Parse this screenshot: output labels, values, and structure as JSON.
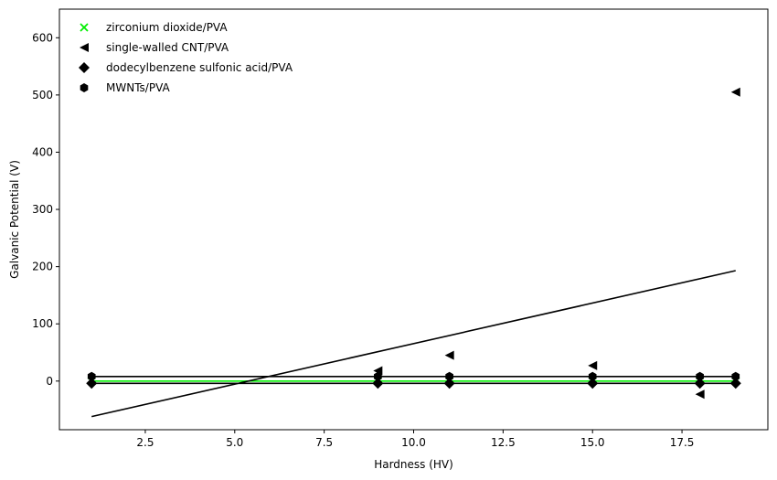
{
  "chart_data": {
    "type": "scatter",
    "xlabel": "Hardness (HV)",
    "ylabel": "Galvanic Potential (V)",
    "xlim": [
      0.1,
      19.9
    ],
    "ylim": [
      -85,
      650
    ],
    "xticks": [
      2.5,
      5.0,
      7.5,
      10.0,
      12.5,
      15.0,
      17.5
    ],
    "xtick_labels": [
      "2.5",
      "5.0",
      "7.5",
      "10.0",
      "12.5",
      "15.0",
      "17.5"
    ],
    "yticks": [
      0,
      100,
      200,
      300,
      400,
      500,
      600
    ],
    "ytick_labels": [
      "0",
      "100",
      "200",
      "300",
      "400",
      "500",
      "600"
    ],
    "grid": false,
    "legend_position": "top-left",
    "series": [
      {
        "name": "zirconium dioxide/PVA",
        "marker": "x",
        "color": "#00ee00",
        "x": [
          1,
          9,
          11,
          15,
          18,
          19
        ],
        "y": [
          0,
          0,
          0,
          0,
          0,
          0
        ],
        "fit": {
          "x": [
            1,
            19
          ],
          "y": [
            0,
            0
          ],
          "color": "#00ee00"
        }
      },
      {
        "name": "single-walled CNT/PVA",
        "marker": "triangle-left",
        "color": "#000000",
        "x": [
          9,
          11,
          15,
          18,
          19
        ],
        "y": [
          18,
          45,
          27,
          -23,
          505
        ],
        "fit": {
          "x": [
            1,
            19
          ],
          "y": [
            -62,
            193
          ],
          "color": "#000000"
        }
      },
      {
        "name": "dodecylbenzene sulfonic acid/PVA",
        "marker": "diamond",
        "color": "#000000",
        "x": [
          1,
          9,
          11,
          15,
          18,
          19
        ],
        "y": [
          -4,
          -4,
          -4,
          -4,
          -4,
          -4
        ],
        "fit": {
          "x": [
            1,
            19
          ],
          "y": [
            -4,
            -4
          ],
          "color": "#000000"
        }
      },
      {
        "name": "MWNTs/PVA",
        "marker": "hexagon",
        "color": "#000000",
        "x": [
          1,
          9,
          11,
          15,
          18,
          19
        ],
        "y": [
          8,
          8,
          8,
          8,
          8,
          8
        ],
        "fit": {
          "x": [
            1,
            19
          ],
          "y": [
            8,
            8
          ],
          "color": "#000000"
        }
      }
    ]
  }
}
